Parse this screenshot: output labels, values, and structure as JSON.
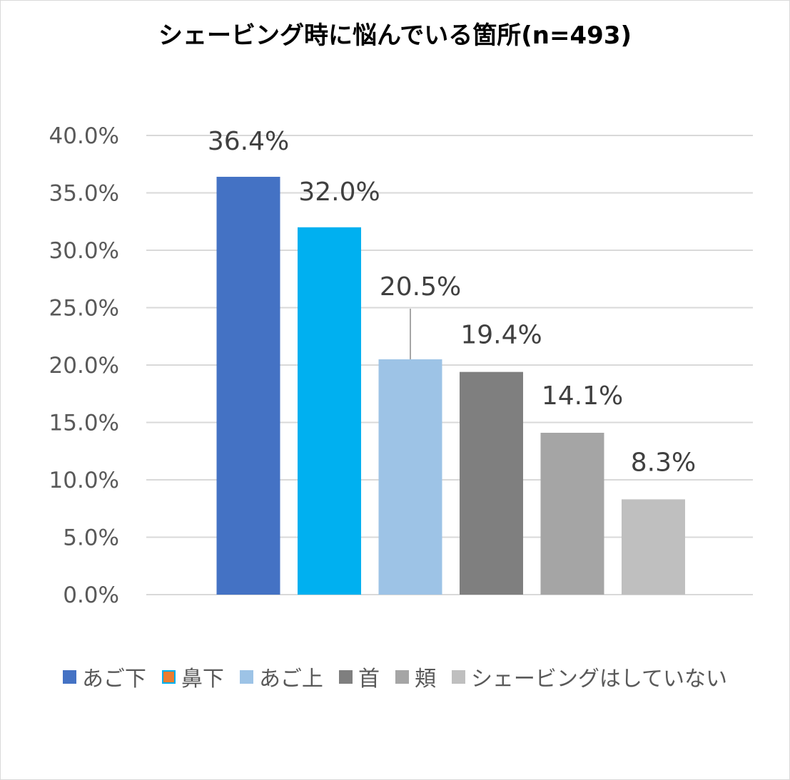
{
  "chart_data": {
    "type": "bar",
    "title": "シェービング時に悩んでいる箇所(n=493)",
    "categories": [
      "あご下",
      "鼻下",
      "あご上",
      "首",
      "頬",
      "シェービングはしていない"
    ],
    "values": [
      36.4,
      32.0,
      20.5,
      19.4,
      14.1,
      8.3
    ],
    "data_labels": [
      "36.4%",
      "32.0%",
      "20.5%",
      "19.4%",
      "14.1%",
      "8.3%"
    ],
    "bar_colors": [
      "#4472c4",
      "#00b0f0",
      "#9dc3e6",
      "#7f7f7f",
      "#a5a5a5",
      "#bfbfbf"
    ],
    "legend": [
      {
        "label": "あご下",
        "color": "#4472c4"
      },
      {
        "label": "鼻下",
        "color": "#ed7d31",
        "border": "#00b0f0"
      },
      {
        "label": "あご上",
        "color": "#9dc3e6"
      },
      {
        "label": "首",
        "color": "#7f7f7f"
      },
      {
        "label": "頬",
        "color": "#a5a5a5"
      },
      {
        "label": "シェービングはしていない",
        "color": "#bfbfbf"
      }
    ],
    "ylim": [
      0,
      40
    ],
    "yticks": [
      0,
      5,
      10,
      15,
      20,
      25,
      30,
      35,
      40
    ],
    "ytick_labels": [
      "0.0%",
      "5.0%",
      "10.0%",
      "15.0%",
      "20.0%",
      "25.0%",
      "30.0%",
      "35.0%",
      "40.0%"
    ],
    "grid": true,
    "legend_position": "bottom",
    "xlabel": "",
    "ylabel": ""
  }
}
